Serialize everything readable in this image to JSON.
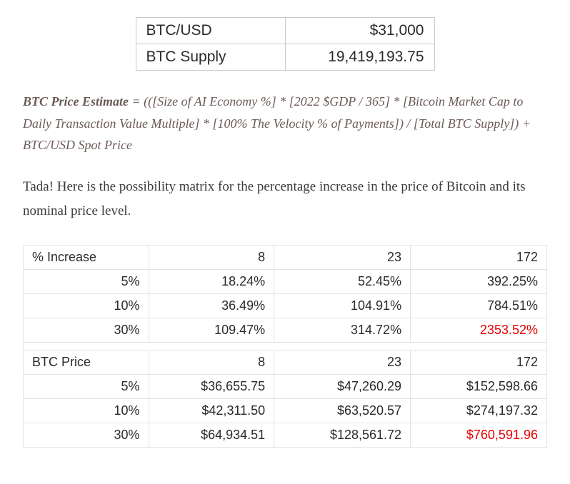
{
  "top_table": {
    "rows": [
      {
        "label": "BTC/USD",
        "value": "$31,000"
      },
      {
        "label": "BTC Supply",
        "value": "19,419,193.75"
      }
    ]
  },
  "formula": {
    "lead": "BTC Price Estimate",
    "body": " = (([Size of AI Economy %] * [2022 $GDP / 365] * [Bitcoin Market Cap to Daily Transaction Value Multiple] * [100% The Velocity % of Payments]) / [Total BTC Supply]) + BTC/USD Spot Price"
  },
  "paragraph": "Tada! Here is the possibility matrix for the percentage increase in the price of Bitcoin and its nominal price level.",
  "matrix_increase": {
    "title": "% Increase",
    "col_headers": [
      "8",
      "23",
      "172"
    ],
    "rows": [
      {
        "head": "5%",
        "cells": [
          "18.24%",
          "52.45%",
          "392.25%"
        ],
        "hl": [
          false,
          false,
          false
        ]
      },
      {
        "head": "10%",
        "cells": [
          "36.49%",
          "104.91%",
          "784.51%"
        ],
        "hl": [
          false,
          false,
          false
        ]
      },
      {
        "head": "30%",
        "cells": [
          "109.47%",
          "314.72%",
          "2353.52%"
        ],
        "hl": [
          false,
          false,
          true
        ]
      }
    ]
  },
  "matrix_price": {
    "title": "BTC Price",
    "col_headers": [
      "8",
      "23",
      "172"
    ],
    "rows": [
      {
        "head": "5%",
        "cells": [
          "$36,655.75",
          "$47,260.29",
          "$152,598.66"
        ],
        "hl": [
          false,
          false,
          false
        ]
      },
      {
        "head": "10%",
        "cells": [
          "$42,311.50",
          "$63,520.57",
          "$274,197.32"
        ],
        "hl": [
          false,
          false,
          false
        ]
      },
      {
        "head": "30%",
        "cells": [
          "$64,934.51",
          "$128,561.72",
          "$760,591.96"
        ],
        "hl": [
          false,
          false,
          true
        ]
      }
    ]
  },
  "style": {
    "highlight_color": "#e60000",
    "border_color": "#e3e3e3",
    "top_border_color": "#c9c9c9",
    "font_serif": "Georgia",
    "font_sans": "Arial"
  }
}
